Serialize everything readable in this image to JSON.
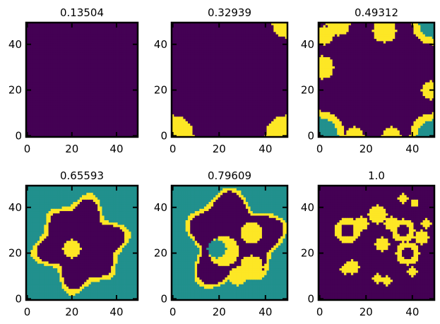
{
  "chart_data": {
    "type": "heatmap",
    "grid_size": 50,
    "xlim": [
      0,
      49
    ],
    "ylim": [
      0,
      49
    ],
    "x_ticks": [
      0,
      20,
      40
    ],
    "y_ticks": [
      0,
      20,
      40
    ],
    "colormap": {
      "0": "#440154",
      "1": "#21908d",
      "2": "#fde725"
    },
    "legend": "none",
    "panels": [
      {
        "title": "0.13504",
        "layout": "top-left"
      },
      {
        "title": "0.32939",
        "layout": "top-middle"
      },
      {
        "title": "0.49312",
        "layout": "top-right"
      },
      {
        "title": "0.65593",
        "layout": "bottom-left"
      },
      {
        "title": "0.79609",
        "layout": "bottom-middle"
      },
      {
        "title": "1.0",
        "layout": "bottom-right"
      }
    ]
  }
}
